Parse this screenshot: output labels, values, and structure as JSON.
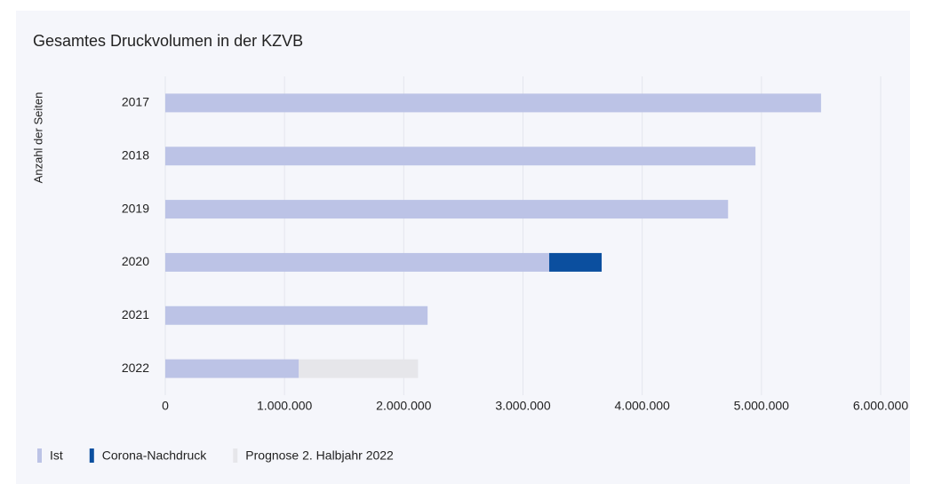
{
  "chart_data": {
    "type": "bar",
    "orientation": "horizontal",
    "stacked": true,
    "title": "Gesamtes Druckvolumen in der KZVB",
    "y_label": "Anzahl der Seiten",
    "categories": [
      "2017",
      "2018",
      "2019",
      "2020",
      "2021",
      "2022"
    ],
    "series": [
      {
        "name": "Ist",
        "color": "#bcc3e6",
        "values": [
          5500000,
          4950000,
          4720000,
          3220000,
          2200000,
          1120000
        ]
      },
      {
        "name": "Corona-Nachdruck",
        "color": "#0b4f9f",
        "values": [
          null,
          null,
          null,
          440000,
          null,
          null
        ]
      },
      {
        "name": "Prognose 2. Halbjahr 2022",
        "color": "#e6e6ea",
        "values": [
          null,
          null,
          null,
          null,
          null,
          1000000
        ]
      }
    ],
    "xlim": [
      0,
      6000000
    ],
    "xticks": [
      0,
      {
        "value": 1000000,
        "label": "1.000.000"
      },
      {
        "value": 2000000,
        "label": "2.000.000"
      },
      {
        "value": 3000000,
        "label": "3.000.000"
      },
      {
        "value": 4000000,
        "label": "4.000.000"
      },
      {
        "value": 5000000,
        "label": "5.000.000"
      },
      {
        "value": 6000000,
        "label": "6.000.000"
      }
    ],
    "grid": true,
    "legend": "bottom-left"
  }
}
